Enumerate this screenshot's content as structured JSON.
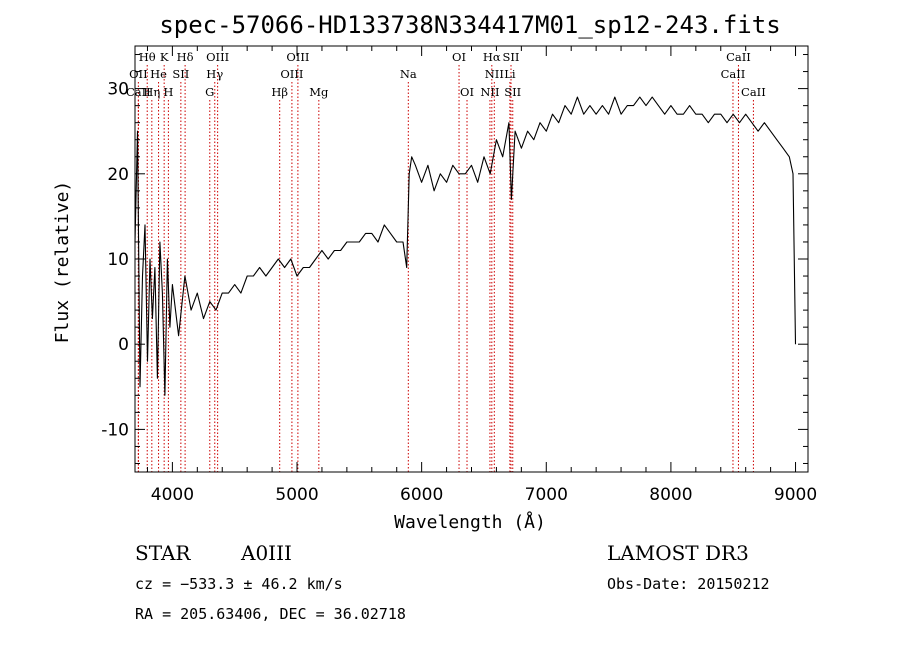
{
  "chart_data": {
    "type": "line",
    "title": "spec-57066-HD133738N334417M01_sp12-243.fits",
    "xlabel": "Wavelength (Å)",
    "ylabel": "Flux (relative)",
    "xlim": [
      3700,
      9100
    ],
    "ylim": [
      -15,
      35
    ],
    "xticks": [
      4000,
      5000,
      6000,
      7000,
      8000,
      9000
    ],
    "yticks": [
      -10,
      0,
      10,
      20,
      30
    ],
    "grid": false,
    "line_color": "#000000",
    "marker_color": "#cc0000",
    "series": [
      {
        "x": [
          3700,
          3720,
          3740,
          3760,
          3780,
          3800,
          3820,
          3840,
          3860,
          3880,
          3900,
          3920,
          3940,
          3960,
          3980,
          4000,
          4050,
          4100,
          4150,
          4200,
          4250,
          4300,
          4350,
          4400,
          4450,
          4500,
          4550,
          4600,
          4650,
          4700,
          4750,
          4800,
          4850,
          4900,
          4950,
          5000,
          5050,
          5100,
          5150,
          5200,
          5250,
          5300,
          5350,
          5400,
          5450,
          5500,
          5550,
          5600,
          5650,
          5700,
          5750,
          5800,
          5850,
          5880,
          5900,
          5920,
          5950,
          6000,
          6050,
          6100,
          6150,
          6200,
          6250,
          6300,
          6350,
          6400,
          6450,
          6500,
          6550,
          6600,
          6650,
          6700,
          6720,
          6750,
          6800,
          6850,
          6900,
          6950,
          7000,
          7050,
          7100,
          7150,
          7200,
          7250,
          7300,
          7350,
          7400,
          7450,
          7500,
          7550,
          7600,
          7650,
          7700,
          7750,
          7800,
          7850,
          7900,
          7950,
          8000,
          8050,
          8100,
          8150,
          8200,
          8250,
          8300,
          8350,
          8400,
          8450,
          8500,
          8550,
          8600,
          8650,
          8700,
          8750,
          8800,
          8850,
          8900,
          8950,
          8980,
          9000
        ],
        "y": [
          12,
          25,
          -5,
          8,
          14,
          -2,
          10,
          3,
          9,
          -4,
          12,
          6,
          -6,
          10,
          2,
          7,
          1,
          8,
          4,
          6,
          3,
          5,
          4,
          6,
          6,
          7,
          6,
          8,
          8,
          9,
          8,
          9,
          10,
          9,
          10,
          8,
          9,
          9,
          10,
          11,
          10,
          11,
          11,
          12,
          12,
          12,
          13,
          13,
          12,
          14,
          13,
          12,
          12,
          9,
          20,
          22,
          21,
          19,
          21,
          18,
          20,
          19,
          21,
          20,
          20,
          21,
          19,
          22,
          20,
          24,
          22,
          26,
          17,
          25,
          23,
          25,
          24,
          26,
          25,
          27,
          26,
          28,
          27,
          29,
          27,
          28,
          27,
          28,
          27,
          29,
          27,
          28,
          28,
          29,
          28,
          29,
          28,
          27,
          28,
          27,
          27,
          28,
          27,
          27,
          26,
          27,
          27,
          26,
          27,
          26,
          27,
          26,
          25,
          26,
          25,
          24,
          23,
          22,
          20,
          0
        ]
      }
    ],
    "line_markers": [
      {
        "label": "Hθ",
        "x": 3798,
        "row": 0
      },
      {
        "label": "K",
        "x": 3934,
        "row": 0
      },
      {
        "label": "Hδ",
        "x": 4102,
        "row": 0
      },
      {
        "label": "OIII",
        "x": 4363,
        "row": 0
      },
      {
        "label": "OIII",
        "x": 5007,
        "row": 0
      },
      {
        "label": "OI",
        "x": 6300,
        "row": 0
      },
      {
        "label": "Hα",
        "x": 6563,
        "row": 0
      },
      {
        "label": "SII",
        "x": 6717,
        "row": 0
      },
      {
        "label": "CaII",
        "x": 8542,
        "row": 0
      },
      {
        "label": "OII",
        "x": 3727,
        "row": 1
      },
      {
        "label": "He",
        "x": 3889,
        "row": 1
      },
      {
        "label": "SII",
        "x": 4068,
        "row": 1
      },
      {
        "label": "Hγ",
        "x": 4340,
        "row": 1
      },
      {
        "label": "OIII",
        "x": 4959,
        "row": 1
      },
      {
        "label": "Na",
        "x": 5893,
        "row": 1
      },
      {
        "label": "NII",
        "x": 6583,
        "row": 1
      },
      {
        "label": "Li",
        "x": 6708,
        "row": 1
      },
      {
        "label": "CaII",
        "x": 8498,
        "row": 1
      },
      {
        "label": "CaII",
        "x": 3727,
        "row": 2
      },
      {
        "label": "Hη",
        "x": 3835,
        "row": 2
      },
      {
        "label": "H",
        "x": 3968,
        "row": 2
      },
      {
        "label": "G",
        "x": 4300,
        "row": 2
      },
      {
        "label": "Hβ",
        "x": 4861,
        "row": 2
      },
      {
        "label": "Mg",
        "x": 5175,
        "row": 2
      },
      {
        "label": "OI",
        "x": 6364,
        "row": 2
      },
      {
        "label": "NII",
        "x": 6548,
        "row": 2
      },
      {
        "label": "SII",
        "x": 6731,
        "row": 2
      },
      {
        "label": "CaII",
        "x": 8662,
        "row": 2
      }
    ]
  },
  "info": {
    "class": "STAR",
    "subclass": "A0III",
    "survey": "LAMOST DR3",
    "cz": "cz = −533.3 ± 46.2 km/s",
    "obs_date": "Obs-Date: 20150212",
    "radec": "RA = 205.63406, DEC =  36.02718"
  }
}
